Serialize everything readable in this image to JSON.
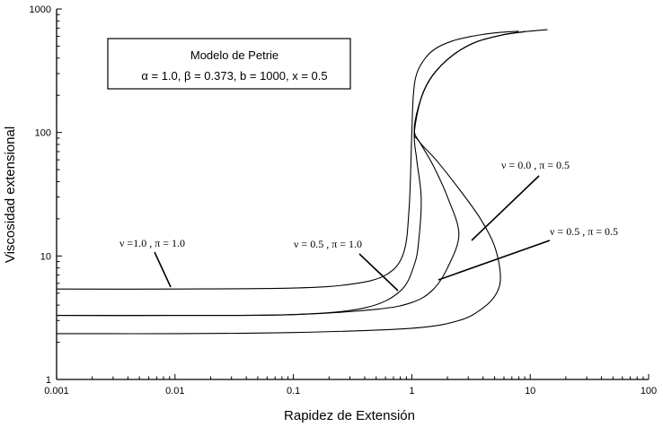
{
  "chart_data": {
    "type": "line",
    "xlabel": "Rapidez de Extensión",
    "ylabel": "Viscosidad extensional",
    "xscale": "log",
    "yscale": "log",
    "xlim": [
      0.001,
      100
    ],
    "ylim": [
      1,
      1000
    ],
    "x_tick_labels": [
      "0.001",
      "0.01",
      "0.1",
      "1",
      "10",
      "100"
    ],
    "y_tick_labels": [
      "1",
      "10",
      "100",
      "1000"
    ],
    "grid": false,
    "legend_box": {
      "title": "Modelo de Petrie",
      "params": "α = 1.0,   β = 0.373,   b = 1000,   x = 0.5"
    },
    "series": [
      {
        "label": "ν =1.0 , π = 1.0",
        "x": [
          0.001,
          0.01,
          0.1,
          0.3,
          0.6,
          0.85,
          0.95,
          1.0,
          1.03,
          1.1,
          1.3,
          1.6,
          2.2,
          3.2,
          5.0,
          8.0
        ],
        "y": [
          5.4,
          5.4,
          5.5,
          5.9,
          7.0,
          10.5,
          25,
          100,
          200,
          300,
          400,
          480,
          550,
          600,
          640,
          660
        ]
      },
      {
        "label": "ν = 0.5  , π = 1.0",
        "x": [
          0.001,
          0.01,
          0.1,
          0.4,
          0.8,
          1.05,
          1.15,
          1.2,
          1.1,
          1.05,
          1.2,
          1.5,
          2.2,
          3.5,
          6.0,
          9.0
        ],
        "y": [
          3.3,
          3.3,
          3.35,
          3.8,
          5.2,
          8.5,
          14,
          30,
          60,
          100,
          190,
          290,
          420,
          540,
          620,
          655
        ]
      },
      {
        "label": "ν = 0.0  , π = 0.5",
        "x": [
          0.001,
          0.01,
          0.1,
          0.5,
          1.0,
          1.5,
          2.0,
          2.5,
          2.0,
          1.5,
          1.15,
          1.05,
          1.2,
          1.5,
          2.2,
          3.5,
          6.0,
          9.0
        ],
        "y": [
          3.3,
          3.3,
          3.35,
          3.7,
          4.2,
          5.3,
          8.0,
          15,
          30,
          55,
          85,
          100,
          190,
          290,
          420,
          540,
          620,
          655
        ]
      },
      {
        "label": "ν = 0.5  ,  π = 0.5",
        "x": [
          0.001,
          0.01,
          0.1,
          1.0,
          2.5,
          4.0,
          5.2,
          5.6,
          5.0,
          3.8,
          2.5,
          1.6,
          1.15,
          1.05,
          1.2,
          1.5,
          2.2,
          3.5,
          6.0,
          9.0,
          14.0
        ],
        "y": [
          2.35,
          2.35,
          2.4,
          2.6,
          3.0,
          3.8,
          5.0,
          7.0,
          12,
          20,
          35,
          60,
          85,
          110,
          190,
          290,
          420,
          540,
          620,
          655,
          680
        ]
      }
    ]
  }
}
